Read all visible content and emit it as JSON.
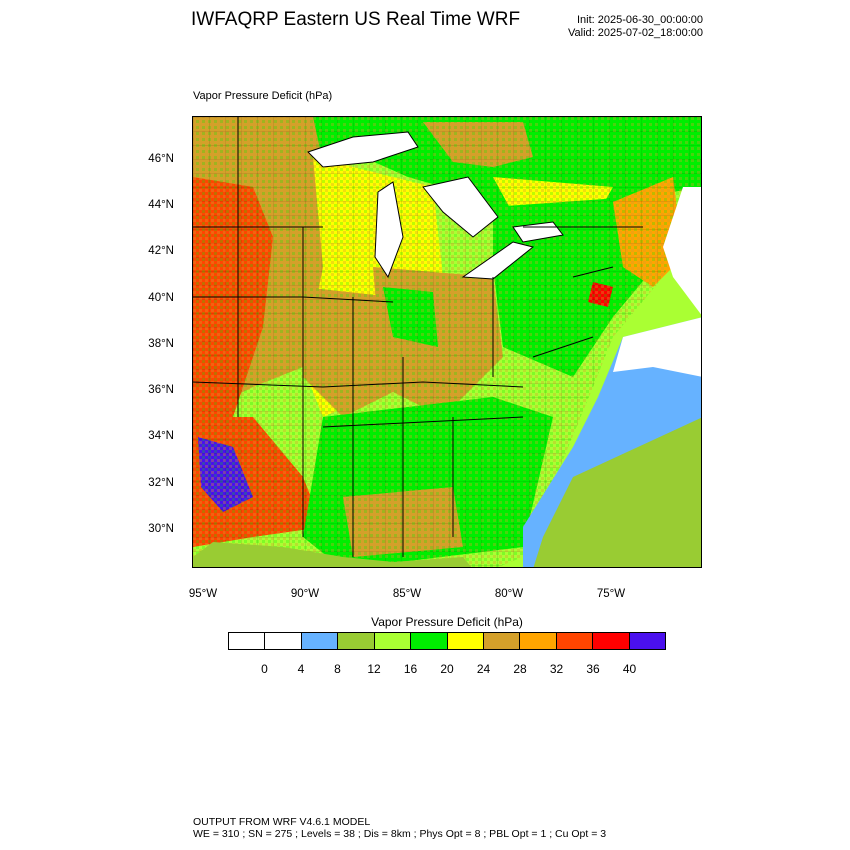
{
  "header": {
    "title": "IWFAQRP Eastern US Real Time WRF",
    "init": "Init: 2025-06-30_00:00:00",
    "valid": "Valid: 2025-07-02_18:00:00"
  },
  "map": {
    "field_label": "Vapor Pressure Deficit   (hPa)",
    "lat_labels": [
      "46°N",
      "44°N",
      "42°N",
      "40°N",
      "38°N",
      "36°N",
      "34°N",
      "32°N",
      "30°N"
    ],
    "lon_labels": [
      "95°W",
      "90°W",
      "85°W",
      "80°W",
      "75°W"
    ]
  },
  "colorbar": {
    "title": "Vapor Pressure Deficit  (hPa)",
    "colors": [
      "#ffffff",
      "#ffffff",
      "#66b2ff",
      "#99cc33",
      "#aaff33",
      "#00ee00",
      "#ffff00",
      "#d4a02a",
      "#ffa500",
      "#ff4500",
      "#ff0000",
      "#4a10ee"
    ],
    "labels": [
      "0",
      "4",
      "8",
      "12",
      "16",
      "20",
      "24",
      "28",
      "32",
      "36",
      "40"
    ]
  },
  "footer": {
    "line1": "OUTPUT FROM WRF V4.6.1 MODEL",
    "line2": "WE = 310 ; SN = 275 ; Levels = 38 ; Dis = 8km ; Phys Opt = 8 ; PBL Opt = 1 ; Cu Opt = 3"
  }
}
